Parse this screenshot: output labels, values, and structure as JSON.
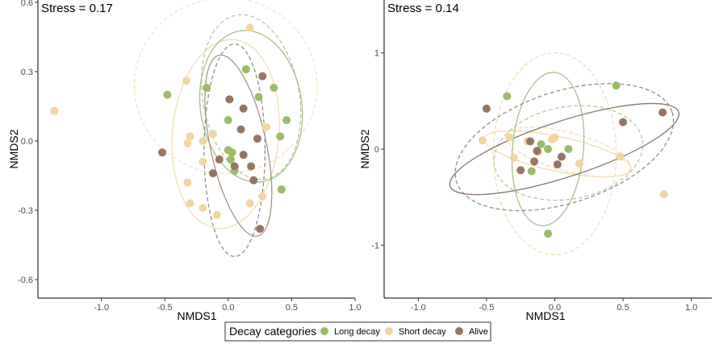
{
  "chart_data": [
    {
      "type": "scatter",
      "stress_text": "Stress =  0.17",
      "xlabel": "NMDS1",
      "ylabel": "NMDS2",
      "xlim": [
        -1.5,
        1.0
      ],
      "ylim": [
        -0.68,
        0.61
      ],
      "xticks": [
        -1.0,
        -0.5,
        0.0,
        0.5,
        1.0
      ],
      "xtick_labels": [
        "-1.0",
        "-0.5",
        "0.0",
        "0.5",
        "1.0"
      ],
      "yticks": [
        0.6,
        0.3,
        0.0,
        -0.3,
        -0.6
      ],
      "ytick_labels": [
        "0.6",
        "0.3",
        "0.0",
        "-0.3",
        "-0.6"
      ],
      "series": [
        {
          "name": "Long decay",
          "color": "#9bbb6a",
          "points": [
            [
              -0.48,
              0.2
            ],
            [
              -0.17,
              0.23
            ],
            [
              0.14,
              0.31
            ],
            [
              0.36,
              0.23
            ],
            [
              0.24,
              0.19
            ],
            [
              0.0,
              0.09
            ],
            [
              0.0,
              -0.04
            ],
            [
              0.03,
              -0.05
            ],
            [
              0.02,
              -0.08
            ],
            [
              0.05,
              -0.13
            ],
            [
              0.41,
              0.02
            ],
            [
              0.46,
              0.09
            ],
            [
              0.42,
              -0.21
            ]
          ]
        },
        {
          "name": "Short decay",
          "color": "#f1d6a0",
          "points": [
            [
              -1.37,
              0.13
            ],
            [
              -0.33,
              0.26
            ],
            [
              0.17,
              0.49
            ],
            [
              -0.3,
              0.02
            ],
            [
              -0.32,
              -0.01
            ],
            [
              -0.2,
              0.0
            ],
            [
              -0.12,
              0.03
            ],
            [
              -0.2,
              -0.09
            ],
            [
              -0.32,
              -0.18
            ],
            [
              -0.3,
              -0.27
            ],
            [
              -0.2,
              -0.29
            ],
            [
              -0.09,
              -0.32
            ],
            [
              0.17,
              -0.27
            ],
            [
              0.3,
              0.06
            ],
            [
              0.23,
              0.01
            ],
            [
              0.27,
              -0.24
            ]
          ]
        },
        {
          "name": "Alive",
          "color": "#967563",
          "points": [
            [
              0.27,
              0.28
            ],
            [
              0.01,
              0.18
            ],
            [
              0.12,
              0.14
            ],
            [
              -0.52,
              -0.05
            ],
            [
              -0.07,
              -0.08
            ],
            [
              -0.12,
              -0.14
            ],
            [
              0.05,
              -0.11
            ],
            [
              0.1,
              0.05
            ],
            [
              0.12,
              -0.06
            ],
            [
              0.18,
              -0.11
            ],
            [
              0.2,
              -0.17
            ],
            [
              0.23,
              0.01
            ],
            [
              0.25,
              -0.38
            ]
          ]
        }
      ],
      "ellipses": [
        {
          "cx": -0.02,
          "cy": 0.24,
          "rx": 0.72,
          "ry": 0.38,
          "angle": 0,
          "color": "#f4e4bf",
          "dashed": true
        },
        {
          "cx": -0.02,
          "cy": 0.03,
          "rx": 0.42,
          "ry": 0.41,
          "angle": -5,
          "color": "#f3deb0",
          "dashed": false
        },
        {
          "cx": 0.18,
          "cy": 0.19,
          "rx": 0.38,
          "ry": 0.36,
          "angle": 10,
          "color": "#b8caa0",
          "dashed": true
        },
        {
          "cx": 0.18,
          "cy": 0.15,
          "rx": 0.4,
          "ry": 0.33,
          "angle": 8,
          "color": "#a7c08a",
          "dashed": false
        },
        {
          "cx": 0.05,
          "cy": -0.04,
          "rx": 0.24,
          "ry": 0.46,
          "angle": 0,
          "color": "#8f8f8f",
          "dashed": true
        },
        {
          "cx": 0.08,
          "cy": -0.02,
          "rx": 0.22,
          "ry": 0.4,
          "angle": 12,
          "color": "#a89480",
          "dashed": false
        }
      ]
    },
    {
      "type": "scatter",
      "stress_text": "Stress =  0.14",
      "xlabel": "NMDS1",
      "ylabel": "NMDS2",
      "xlim": [
        -1.25,
        1.15
      ],
      "ylim": [
        -1.55,
        1.55
      ],
      "xticks": [
        -1.0,
        -0.5,
        0.0,
        0.5,
        1.0
      ],
      "xtick_labels": [
        "-1.0",
        "-0.5",
        "0.0",
        "0.5",
        "1.0"
      ],
      "yticks": [
        1.0,
        0.0,
        -1.0
      ],
      "ytick_labels": [
        "1",
        "0",
        "-1"
      ],
      "series": [
        {
          "name": "Long decay",
          "color": "#9bbb6a",
          "points": [
            [
              -0.35,
              0.55
            ],
            [
              -0.1,
              0.05
            ],
            [
              -0.05,
              0.0
            ],
            [
              0.1,
              0.0
            ],
            [
              -0.17,
              -0.23
            ],
            [
              0.45,
              0.66
            ],
            [
              -0.05,
              -0.88
            ]
          ]
        },
        {
          "name": "Short decay",
          "color": "#f1d6a0",
          "points": [
            [
              -0.53,
              0.09
            ],
            [
              -0.33,
              0.12
            ],
            [
              -0.2,
              0.08
            ],
            [
              -0.02,
              0.1
            ],
            [
              0.0,
              0.12
            ],
            [
              -0.12,
              -0.03
            ],
            [
              -0.3,
              -0.09
            ],
            [
              0.18,
              -0.15
            ],
            [
              0.48,
              -0.08
            ],
            [
              0.8,
              -0.47
            ]
          ]
        },
        {
          "name": "Alive",
          "color": "#967563",
          "points": [
            [
              -0.5,
              0.42
            ],
            [
              -0.18,
              0.08
            ],
            [
              -0.13,
              -0.02
            ],
            [
              -0.15,
              -0.13
            ],
            [
              -0.25,
              -0.22
            ],
            [
              0.02,
              -0.16
            ],
            [
              0.05,
              -0.08
            ],
            [
              0.5,
              0.28
            ],
            [
              0.79,
              0.38
            ]
          ]
        }
      ],
      "ellipses": [
        {
          "cx": 0.0,
          "cy": -0.05,
          "rx": 0.45,
          "ry": 1.05,
          "angle": 0,
          "color": "#f3deb0",
          "dashed": true
        },
        {
          "cx": 0.1,
          "cy": -0.03,
          "rx": 0.47,
          "ry": 0.2,
          "angle": -15,
          "color": "#f3deb0",
          "dashed": true
        },
        {
          "cx": 0.02,
          "cy": -0.05,
          "rx": 0.55,
          "ry": 0.18,
          "angle": -12,
          "color": "#f3deb0",
          "dashed": false
        },
        {
          "cx": -0.05,
          "cy": 0.0,
          "rx": 0.26,
          "ry": 0.8,
          "angle": -5,
          "color": "#a7c08a",
          "dashed": false
        },
        {
          "cx": 0.1,
          "cy": -0.04,
          "rx": 0.55,
          "ry": 0.48,
          "angle": 10,
          "color": "#b8caa0",
          "dashed": true
        },
        {
          "cx": 0.07,
          "cy": 0.02,
          "rx": 0.83,
          "ry": 0.58,
          "angle": 18,
          "color": "#8f8f8f",
          "dashed": true
        },
        {
          "cx": 0.07,
          "cy": 0.0,
          "rx": 0.88,
          "ry": 0.29,
          "angle": 18,
          "color": "#8c7565",
          "dashed": false
        }
      ]
    }
  ],
  "legend": {
    "title": "Decay categories",
    "items": [
      {
        "label": "Long decay",
        "color": "#9bbb6a"
      },
      {
        "label": "Short decay",
        "color": "#f1d6a0"
      },
      {
        "label": "Alive",
        "color": "#967563"
      }
    ]
  }
}
